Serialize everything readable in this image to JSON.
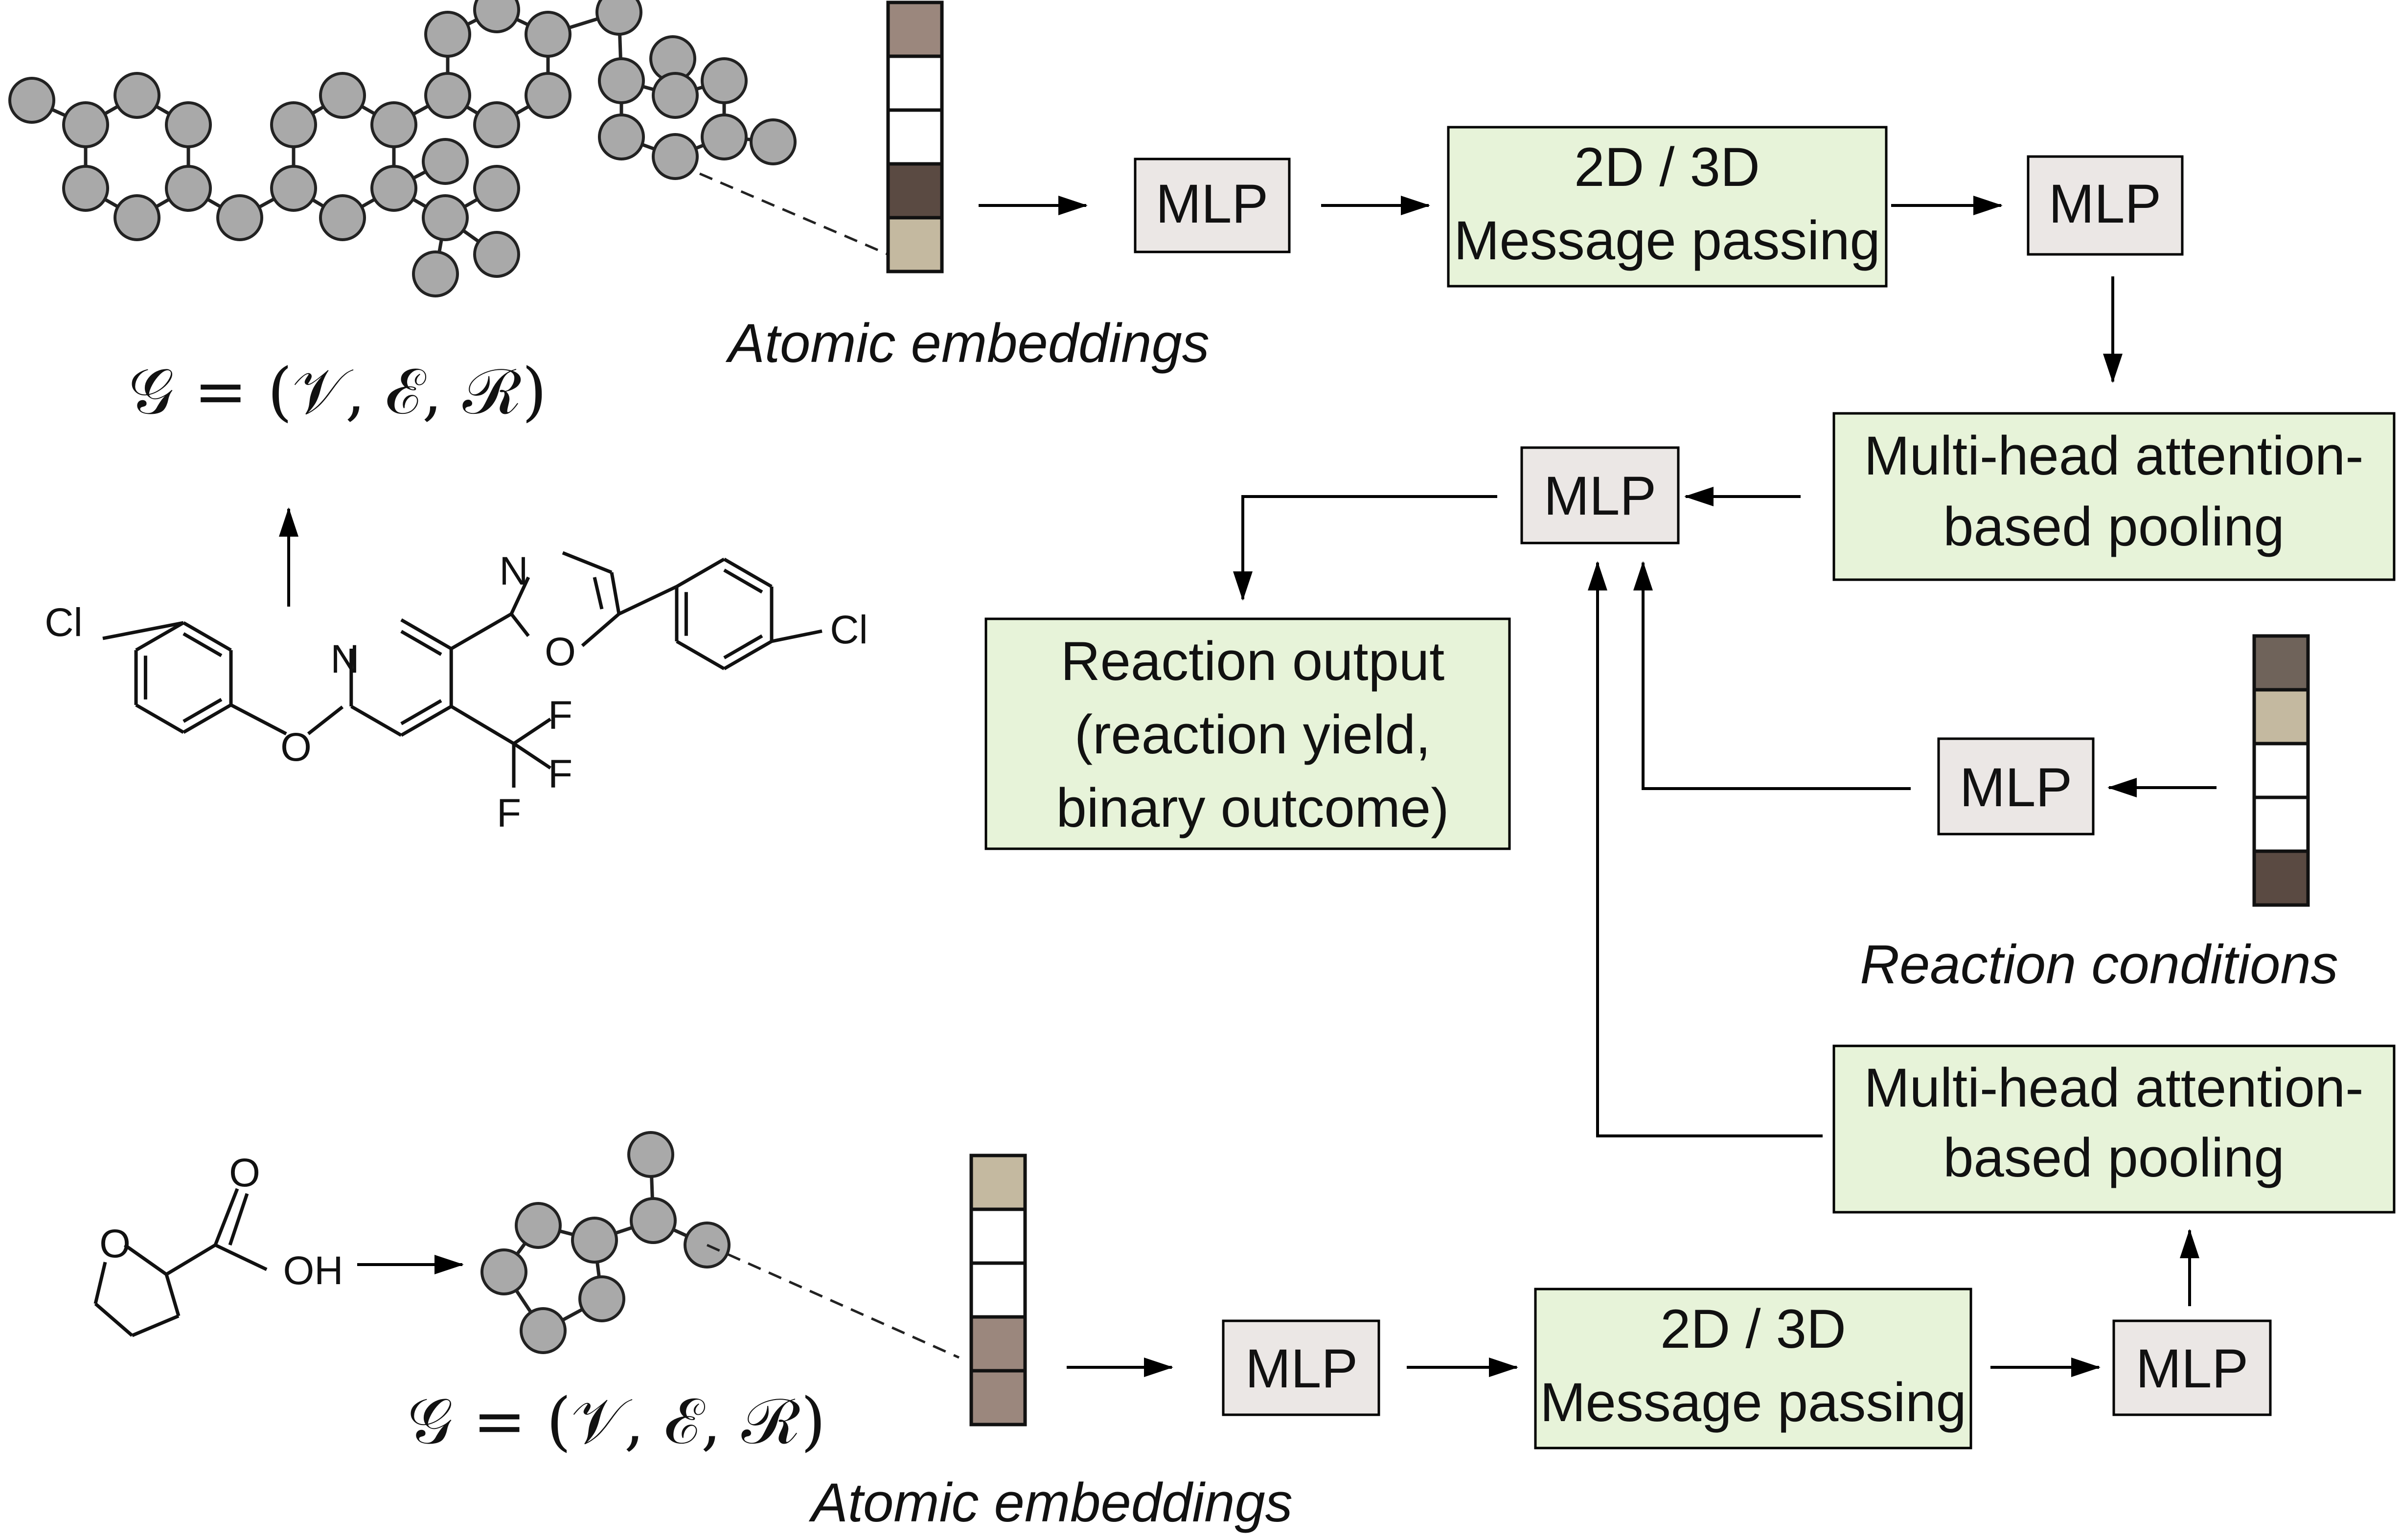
{
  "colors": {
    "mlp_fill": "#ebe7e5",
    "green_fill": "#e7f3d9",
    "node_fill": "#a9a9a9",
    "embed_colors": {
      "top": [
        "#9b877d",
        "#ffffff",
        "#ffffff",
        "#5a4a42",
        "#c4b9a0"
      ],
      "conditions": [
        "#6f635a",
        "#c4b9a0",
        "#ffffff",
        "#ffffff",
        "#5a4a42"
      ],
      "bottom": [
        "#c4b9a0",
        "#ffffff",
        "#ffffff",
        "#9b877d",
        "#9b877d"
      ]
    }
  },
  "top_branch": {
    "graph_formula": "𝒢 = (𝒱, ℰ, ℛ)",
    "embeddings_label": "Atomic embeddings",
    "mlp1": "MLP",
    "message_passing": [
      "2D / 3D",
      "Message passing"
    ],
    "mlp2": "MLP",
    "pooling": [
      "Multi-head attention-",
      "based pooling"
    ]
  },
  "molecule_top": {
    "cl_left": "Cl",
    "n_pyridine": "N",
    "o_ether": "O",
    "n_oxazole": "N",
    "o_oxazole": "O",
    "cl_right": "Cl",
    "f1": "F",
    "f2": "F",
    "f3": "F"
  },
  "center": {
    "mlp": "MLP",
    "output": [
      "Reaction output",
      "(reaction yield,",
      "binary outcome)"
    ]
  },
  "conditions": {
    "mlp": "MLP",
    "label": "Reaction conditions"
  },
  "bottom_branch": {
    "o_ring": "O",
    "o_carbonyl": "O",
    "oh": "OH",
    "graph_formula": "𝒢 = (𝒱, ℰ, ℛ)",
    "embeddings_label": "Atomic embeddings",
    "mlp1": "MLP",
    "message_passing": [
      "2D / 3D",
      "Message passing"
    ],
    "mlp2": "MLP",
    "pooling": [
      "Multi-head attention-",
      "based pooling"
    ]
  }
}
